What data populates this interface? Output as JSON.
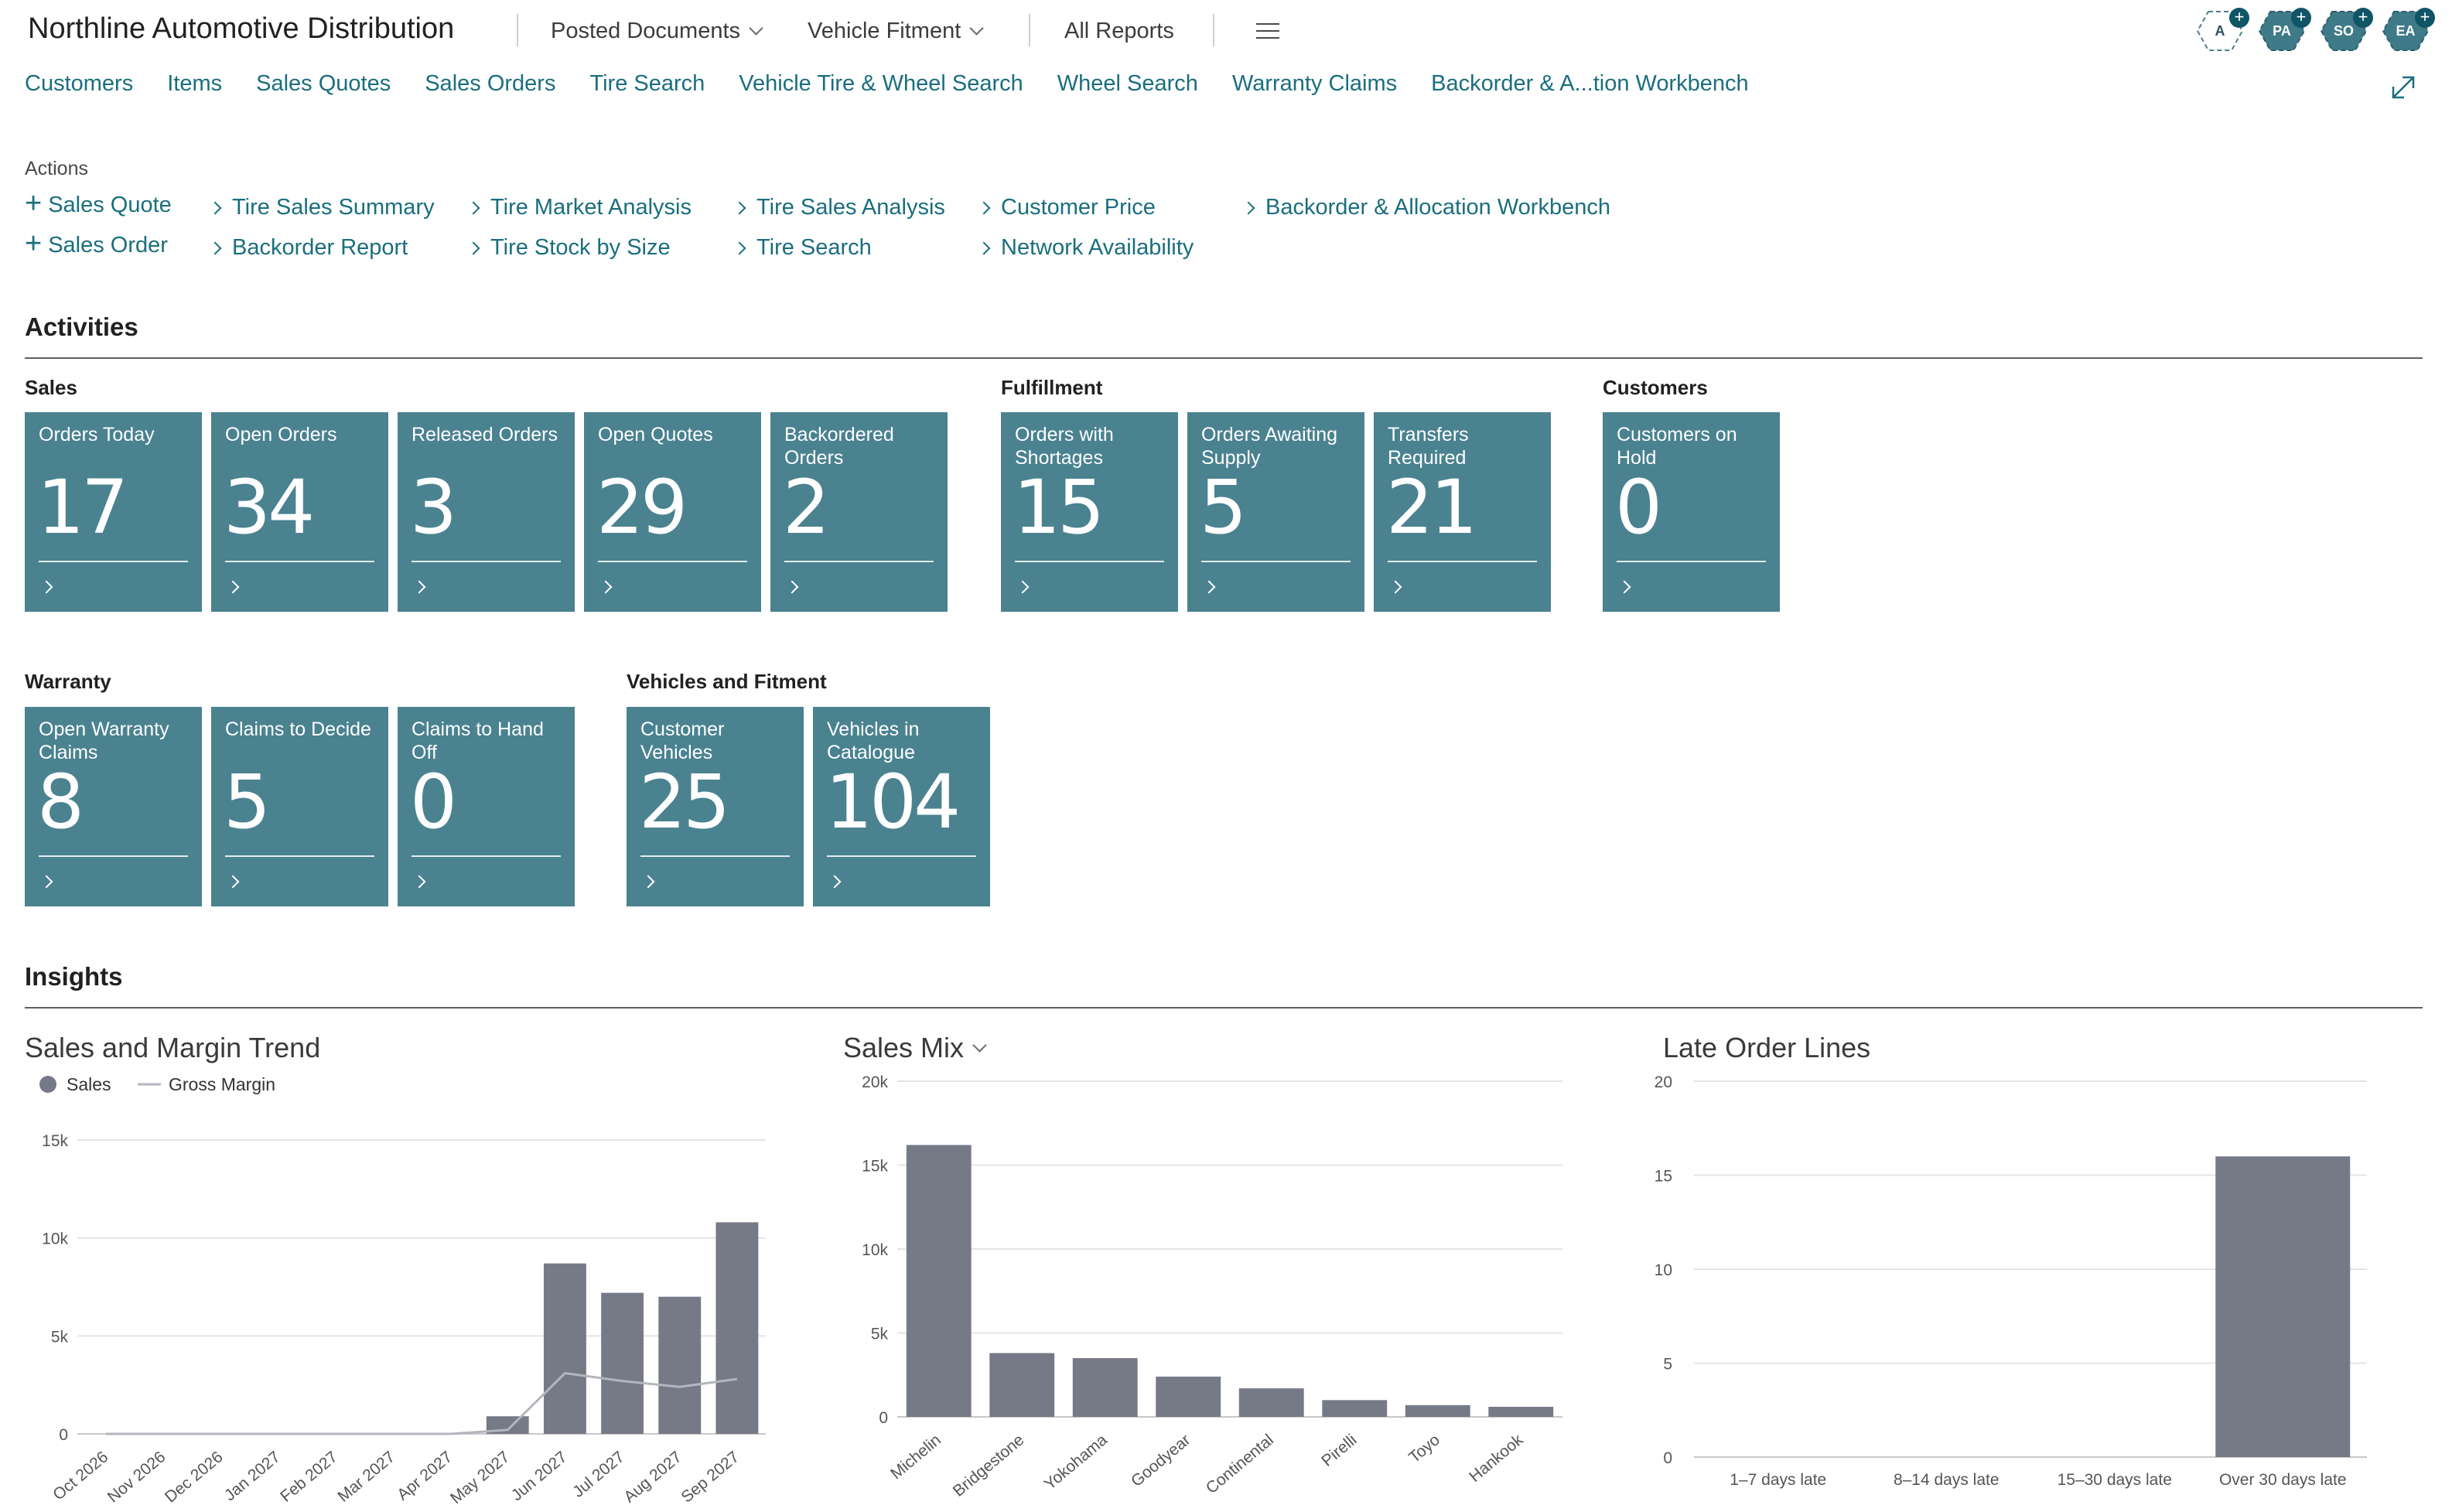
{
  "header": {
    "company": "Northline Automotive Distribution",
    "menus": [
      "Posted Documents",
      "Vehicle Fitment",
      "All Reports"
    ],
    "avatars": [
      {
        "initials": "A",
        "style": "light"
      },
      {
        "initials": "PA",
        "style": "dark"
      },
      {
        "initials": "SO",
        "style": "dark"
      },
      {
        "initials": "EA",
        "style": "dark"
      }
    ]
  },
  "nav": [
    "Customers",
    "Items",
    "Sales Quotes",
    "Sales Orders",
    "Tire Search",
    "Vehicle Tire & Wheel Search",
    "Wheel Search",
    "Warranty Claims",
    "Backorder & A...tion Workbench"
  ],
  "actions": {
    "label": "Actions",
    "items": [
      {
        "label": "Sales Quote",
        "icon": "plus-icon"
      },
      {
        "label": "Sales Order",
        "icon": "plus-icon"
      },
      {
        "label": "Tire Sales Summary",
        "icon": "chevron-right-icon"
      },
      {
        "label": "Backorder Report",
        "icon": "chevron-right-icon"
      },
      {
        "label": "Tire Market Analysis",
        "icon": "chevron-right-icon"
      },
      {
        "label": "Tire Stock by Size",
        "icon": "chevron-right-icon"
      },
      {
        "label": "Tire Sales Analysis",
        "icon": "chevron-right-icon"
      },
      {
        "label": "Tire Search",
        "icon": "chevron-right-icon"
      },
      {
        "label": "Customer Price",
        "icon": "chevron-right-icon"
      },
      {
        "label": "Network Availability",
        "icon": "chevron-right-icon"
      },
      {
        "label": "Backorder & Allocation Workbench",
        "icon": "chevron-right-icon"
      }
    ]
  },
  "activities": {
    "title": "Activities",
    "groups": [
      {
        "name": "Sales",
        "tiles": [
          {
            "label": "Orders Today",
            "value": "17"
          },
          {
            "label": "Open Orders",
            "value": "34"
          },
          {
            "label": "Released Orders",
            "value": "3"
          },
          {
            "label": "Open Quotes",
            "value": "29"
          },
          {
            "label": "Backordered Orders",
            "value": "2"
          }
        ]
      },
      {
        "name": "Fulfillment",
        "tiles": [
          {
            "label": "Orders with Shortages",
            "value": "15"
          },
          {
            "label": "Orders Awaiting Supply",
            "value": "5"
          },
          {
            "label": "Transfers Required",
            "value": "21"
          }
        ]
      },
      {
        "name": "Customers",
        "tiles": [
          {
            "label": "Customers on Hold",
            "value": "0"
          }
        ]
      },
      {
        "name": "Warranty",
        "tiles": [
          {
            "label": "Open Warranty Claims",
            "value": "8"
          },
          {
            "label": "Claims to Decide",
            "value": "5"
          },
          {
            "label": "Claims to Hand Off",
            "value": "0"
          }
        ]
      },
      {
        "name": "Vehicles and Fitment",
        "tiles": [
          {
            "label": "Customer Vehicles",
            "value": "25"
          },
          {
            "label": "Vehicles in Catalogue",
            "value": "104"
          }
        ]
      }
    ]
  },
  "insights": {
    "title": "Insights"
  },
  "colors": {
    "tile": "#4a8290",
    "bar": "#767a87",
    "line": "#b3b6bd",
    "link": "#1a6e7e"
  },
  "chart_data": [
    {
      "type": "bar",
      "title": "Sales and Margin Trend",
      "categories": [
        "Oct 2026",
        "Nov 2026",
        "Dec 2026",
        "Jan 2027",
        "Feb 2027",
        "Mar 2027",
        "Apr 2027",
        "May 2027",
        "Jun 2027",
        "Jul 2027",
        "Aug 2027",
        "Sep 2027"
      ],
      "series": [
        {
          "name": "Sales",
          "kind": "bar",
          "values": [
            0,
            0,
            0,
            0,
            0,
            0,
            0,
            900,
            8700,
            7200,
            7000,
            10800
          ]
        },
        {
          "name": "Gross Margin",
          "kind": "line",
          "values": [
            0,
            0,
            0,
            0,
            0,
            0,
            0,
            200,
            3100,
            2700,
            2400,
            2800
          ]
        }
      ],
      "yticks": [
        "0",
        "5k",
        "10k",
        "15k"
      ],
      "ylim": [
        0,
        15000
      ],
      "legend": "top-left",
      "grid": true
    },
    {
      "type": "bar",
      "title": "Sales Mix",
      "categories": [
        "Michelin",
        "Bridgestone",
        "Yokohama",
        "Goodyear",
        "Continental",
        "Pirelli",
        "Toyo",
        "Hankook"
      ],
      "values": [
        16200,
        3800,
        3500,
        2400,
        1700,
        1000,
        700,
        600
      ],
      "yticks": [
        "0",
        "5k",
        "10k",
        "15k",
        "20k"
      ],
      "ylim": [
        0,
        20000
      ],
      "grid": true
    },
    {
      "type": "bar",
      "title": "Late Order Lines",
      "categories": [
        "1–7 days late",
        "8–14 days late",
        "15–30 days late",
        "Over 30 days late"
      ],
      "values": [
        0,
        0,
        0,
        16
      ],
      "yticks": [
        "0",
        "5",
        "10",
        "15",
        "20"
      ],
      "ylim": [
        0,
        20
      ],
      "grid": true
    }
  ]
}
